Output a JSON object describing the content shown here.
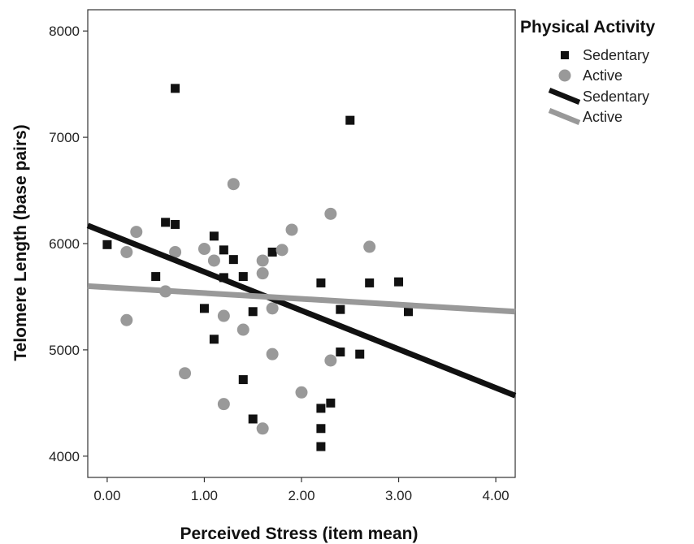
{
  "chart_data": {
    "type": "scatter",
    "xlabel": "Perceived Stress (item mean)",
    "ylabel": "Telomere Length (base pairs)",
    "xlim": [
      -0.2,
      4.2
    ],
    "ylim": [
      3800,
      8200
    ],
    "x_ticks": [
      0,
      1,
      2,
      3,
      4
    ],
    "x_tick_labels": [
      "0.00",
      "1.00",
      "2.00",
      "3.00",
      "4.00"
    ],
    "y_ticks": [
      4000,
      5000,
      6000,
      7000,
      8000
    ],
    "y_tick_labels": [
      "4000",
      "5000",
      "6000",
      "7000",
      "8000"
    ],
    "grid": false,
    "legend": {
      "title": "Physical Activity",
      "position": "right",
      "entries": [
        {
          "label": "Sedentary",
          "kind": "square-marker",
          "color": "#111111"
        },
        {
          "label": "Active",
          "kind": "circle-marker",
          "color": "#999999"
        },
        {
          "label": "Sedentary",
          "kind": "fit-line",
          "color": "#111111"
        },
        {
          "label": "Active",
          "kind": "fit-line",
          "color": "#999999"
        }
      ]
    },
    "series": [
      {
        "name": "Sedentary",
        "marker": "square",
        "color": "#111111",
        "points": [
          [
            0.0,
            5990
          ],
          [
            0.5,
            5690
          ],
          [
            0.6,
            6200
          ],
          [
            0.7,
            6180
          ],
          [
            0.7,
            7460
          ],
          [
            1.0,
            5390
          ],
          [
            1.1,
            6070
          ],
          [
            1.1,
            5100
          ],
          [
            1.2,
            5940
          ],
          [
            1.2,
            5680
          ],
          [
            1.3,
            5850
          ],
          [
            1.4,
            5690
          ],
          [
            1.4,
            4720
          ],
          [
            1.5,
            5360
          ],
          [
            1.5,
            4350
          ],
          [
            1.7,
            5920
          ],
          [
            2.2,
            5630
          ],
          [
            2.2,
            4450
          ],
          [
            2.2,
            4260
          ],
          [
            2.2,
            4090
          ],
          [
            2.3,
            4500
          ],
          [
            2.4,
            5380
          ],
          [
            2.4,
            4980
          ],
          [
            2.5,
            7160
          ],
          [
            2.6,
            4960
          ],
          [
            2.7,
            5630
          ],
          [
            3.0,
            5640
          ],
          [
            3.1,
            5360
          ]
        ]
      },
      {
        "name": "Active",
        "marker": "circle",
        "color": "#999999",
        "points": [
          [
            0.2,
            5920
          ],
          [
            0.2,
            5280
          ],
          [
            0.3,
            6110
          ],
          [
            0.6,
            5550
          ],
          [
            0.7,
            5920
          ],
          [
            0.8,
            4780
          ],
          [
            1.0,
            5950
          ],
          [
            1.1,
            5840
          ],
          [
            1.2,
            5320
          ],
          [
            1.2,
            4490
          ],
          [
            1.3,
            6560
          ],
          [
            1.4,
            5190
          ],
          [
            1.6,
            5840
          ],
          [
            1.6,
            5720
          ],
          [
            1.6,
            4260
          ],
          [
            1.7,
            5390
          ],
          [
            1.7,
            4960
          ],
          [
            1.8,
            5940
          ],
          [
            1.9,
            6130
          ],
          [
            2.0,
            4600
          ],
          [
            2.3,
            6280
          ],
          [
            2.3,
            4900
          ],
          [
            2.7,
            5970
          ]
        ]
      }
    ],
    "fit_lines": [
      {
        "name": "Sedentary",
        "color": "#111111",
        "x": [
          -0.2,
          4.2
        ],
        "y": [
          6170,
          4570
        ]
      },
      {
        "name": "Active",
        "color": "#999999",
        "x": [
          -0.2,
          4.2
        ],
        "y": [
          5600,
          5360
        ]
      }
    ]
  }
}
